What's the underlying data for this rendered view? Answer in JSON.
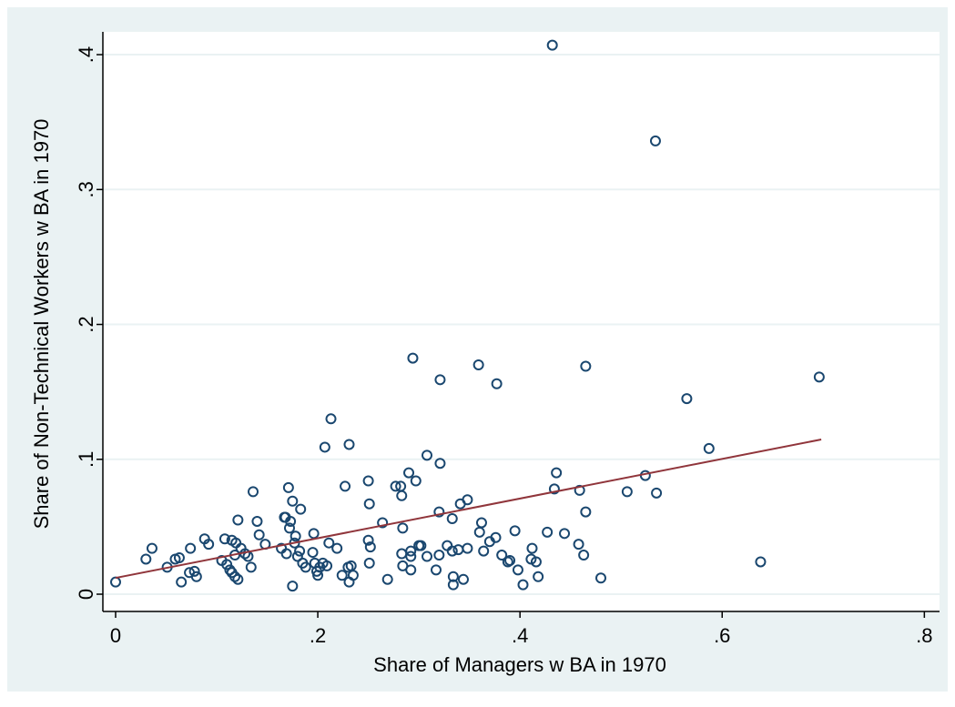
{
  "chart_data": {
    "type": "scatter",
    "xlabel": "Share of Managers w BA in 1970",
    "ylabel": "Share of Non-Technical Workers w BA in 1970",
    "xlim": [
      -0.0126,
      0.815
    ],
    "ylim": [
      -0.0128,
      0.4169
    ],
    "xticks": [
      0,
      {
        "value": 0.2,
        "label": ".2"
      },
      {
        "value": 0.4,
        "label": ".4"
      },
      {
        "value": 0.6,
        "label": ".6"
      },
      {
        "value": 0.8,
        "label": ".8"
      }
    ],
    "yticks": [
      0,
      {
        "value": 0.1,
        "label": ".1"
      },
      {
        "value": 0.2,
        "label": ".2"
      },
      {
        "value": 0.3,
        "label": ".3"
      },
      {
        "value": 0.4,
        "label": ".4"
      }
    ],
    "grid": true,
    "series": [
      {
        "type": "scatter",
        "color": "#1a476f",
        "x": [
          0,
          0.03,
          0.036,
          0.051,
          0.059,
          0.063,
          0.065,
          0.073,
          0.074,
          0.078,
          0.08,
          0.088,
          0.092,
          0.105,
          0.108,
          0.11,
          0.113,
          0.115,
          0.115,
          0.118,
          0.118,
          0.119,
          0.121,
          0.121,
          0.124,
          0.128,
          0.131,
          0.134,
          0.136,
          0.14,
          0.142,
          0.148,
          0.164,
          0.167,
          0.168,
          0.169,
          0.171,
          0.172,
          0.173,
          0.175,
          0.175,
          0.177,
          0.178,
          0.18,
          0.182,
          0.183,
          0.185,
          0.188,
          0.195,
          0.196,
          0.197,
          0.199,
          0.2,
          0.202,
          0.205,
          0.207,
          0.209,
          0.211,
          0.213,
          0.219,
          0.224,
          0.227,
          0.23,
          0.231,
          0.231,
          0.233,
          0.235,
          0.25,
          0.251,
          0.25,
          0.252,
          0.251,
          0.264,
          0.269,
          0.277,
          0.282,
          0.283,
          0.284,
          0.283,
          0.284,
          0.29,
          0.292,
          0.292,
          0.292,
          0.294,
          0.297,
          0.3,
          0.302,
          0.308,
          0.308,
          0.317,
          0.32,
          0.32,
          0.321,
          0.321,
          0.328,
          0.333,
          0.333,
          0.334,
          0.334,
          0.339,
          0.341,
          0.344,
          0.348,
          0.348,
          0.359,
          0.36,
          0.362,
          0.364,
          0.37,
          0.376,
          0.377,
          0.382,
          0.388,
          0.39,
          0.395,
          0.398,
          0.403,
          0.411,
          0.412,
          0.416,
          0.418,
          0.427,
          0.432,
          0.434,
          0.436,
          0.444,
          0.458,
          0.459,
          0.463,
          0.465,
          0.465,
          0.48,
          0.506,
          0.524,
          0.535,
          0.534,
          0.565,
          0.587,
          0.638,
          0.696
        ],
        "values": [
          0.009,
          0.026,
          0.034,
          0.02,
          0.026,
          0.027,
          0.009,
          0.016,
          0.034,
          0.017,
          0.013,
          0.041,
          0.037,
          0.025,
          0.041,
          0.022,
          0.018,
          0.04,
          0.016,
          0.029,
          0.013,
          0.038,
          0.011,
          0.055,
          0.034,
          0.03,
          0.028,
          0.02,
          0.076,
          0.054,
          0.044,
          0.037,
          0.034,
          0.057,
          0.057,
          0.03,
          0.079,
          0.049,
          0.054,
          0.069,
          0.006,
          0.038,
          0.043,
          0.028,
          0.032,
          0.063,
          0.023,
          0.02,
          0.031,
          0.045,
          0.023,
          0.017,
          0.014,
          0.02,
          0.023,
          0.109,
          0.021,
          0.038,
          0.13,
          0.034,
          0.014,
          0.08,
          0.02,
          0.111,
          0.009,
          0.021,
          0.014,
          0.084,
          0.067,
          0.04,
          0.035,
          0.023,
          0.053,
          0.011,
          0.08,
          0.08,
          0.073,
          0.049,
          0.03,
          0.021,
          0.09,
          0.018,
          0.028,
          0.032,
          0.175,
          0.084,
          0.036,
          0.036,
          0.103,
          0.028,
          0.018,
          0.029,
          0.061,
          0.159,
          0.097,
          0.036,
          0.032,
          0.056,
          0.013,
          0.007,
          0.033,
          0.067,
          0.011,
          0.034,
          0.07,
          0.17,
          0.046,
          0.053,
          0.032,
          0.039,
          0.042,
          0.156,
          0.029,
          0.024,
          0.025,
          0.047,
          0.018,
          0.007,
          0.026,
          0.034,
          0.024,
          0.013,
          0.046,
          0.407,
          0.078,
          0.09,
          0.045,
          0.037,
          0.077,
          0.029,
          0.061,
          0.169,
          0.012,
          0.076,
          0.088,
          0.075,
          0.336,
          0.145,
          0.108,
          0.024,
          0.161
        ]
      },
      {
        "type": "line",
        "color": "#90353b",
        "x": [
          0,
          0.698
        ],
        "values": [
          0.0121,
          0.1147
        ]
      }
    ]
  }
}
